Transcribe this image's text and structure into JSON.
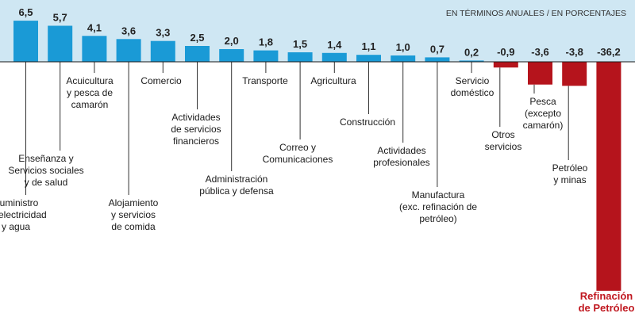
{
  "chart_data": {
    "type": "bar",
    "unit_note": "EN TÉRMINOS ANUALES / EN PORCENTAJES",
    "title": "",
    "xlabel": "",
    "ylabel": "",
    "ylim": [
      -36.2,
      6.5
    ],
    "grid": false,
    "legend": "none",
    "colors": {
      "positive": "#1a9ad6",
      "negative": "#b5141c",
      "band": "#cfe7f3",
      "axis": "#1a1a1a",
      "highlight_text": "#c01820"
    },
    "categories": [
      "Suministro\nde electricidad\ny agua",
      "Enseñanza y\nServicios sociales\ny de salud",
      "Acuicultura\ny pesca de\ncamarón",
      "Alojamiento\ny servicios\nde comida",
      "Comercio",
      "Actividades\nde servicios\nfinancieros",
      "Administración\npública y defensa",
      "Transporte",
      "Correo y\nComunicaciones",
      "Agricultura",
      "Construcción",
      "Actividades\nprofesionales",
      "Manufactura\n(exc. refinación de\npetróleo)",
      "Servicio\ndoméstico",
      "Otros\nservicios",
      "Pesca\n(excepto\ncamarón)",
      "Petróleo\ny minas",
      "Refinación\nde Petróleo"
    ],
    "value_labels": [
      "6,5",
      "5,7",
      "4,1",
      "3,6",
      "3,3",
      "2,5",
      "2,0",
      "1,8",
      "1,5",
      "1,4",
      "1,1",
      "1,0",
      "0,7",
      "0,2",
      "-0,9",
      "-3,6",
      "-3,8",
      "-36,2"
    ],
    "values": [
      6.5,
      5.7,
      4.1,
      3.6,
      3.3,
      2.5,
      2.0,
      1.8,
      1.5,
      1.4,
      1.1,
      1.0,
      0.7,
      0.2,
      -0.9,
      -3.6,
      -3.8,
      -36.2
    ],
    "highlight_category": "Refinación\nde Petróleo"
  }
}
